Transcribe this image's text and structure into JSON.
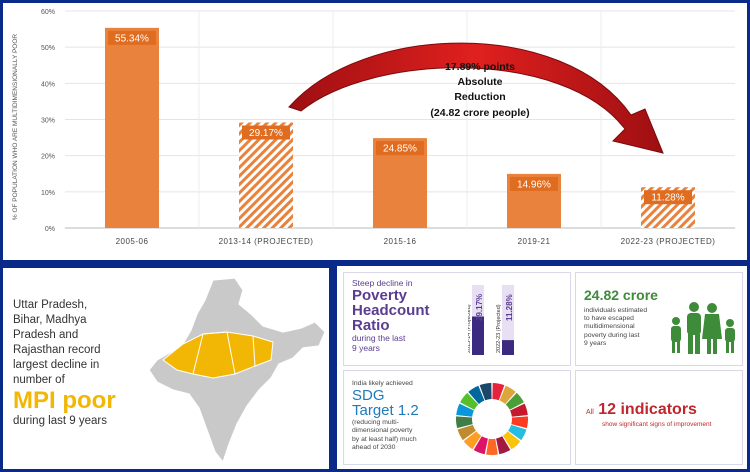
{
  "chart_data": {
    "type": "bar",
    "ylabel": "% OF POPULATION WHO ARE MULTIDIMENSIONALLY POOR",
    "ylim": [
      0,
      60
    ],
    "yticks": [
      "0%",
      "10%",
      "20%",
      "30%",
      "40%",
      "50%",
      "60%"
    ],
    "categories": [
      "2005-06",
      "2013-14 (PROJECTED)",
      "2015-16",
      "2019-21",
      "2022-23 (PROJECTED)"
    ],
    "values": [
      55.34,
      29.17,
      24.85,
      14.96,
      11.28
    ],
    "data_labels": [
      "55.34%",
      "29.17%",
      "24.85%",
      "14.96%",
      "11.28%"
    ],
    "projected": [
      false,
      true,
      false,
      false,
      true
    ],
    "bar_color": "#e8823c",
    "annotation": [
      "17.89% points",
      "Absolute",
      "Reduction",
      "(24.82 crore people)"
    ],
    "arrow_color": "#d7191c"
  },
  "map_panel": {
    "lines": [
      "Uttar Pradesh,",
      "Bihar, Madhya",
      "Pradesh  and",
      "Rajasthan record",
      "largest decline in",
      "number of"
    ],
    "big": "MPI poor",
    "tail": "during last 9 years",
    "map_icon": "india-map-icon",
    "highlight_color": "#f2b705"
  },
  "headcount_card": {
    "line1": "Steep decline in",
    "big": [
      "Poverty",
      "Headcount",
      "Ratio"
    ],
    "tail": [
      "during the last",
      "9 years"
    ],
    "bars": [
      {
        "period": "2013-14 (Projected)",
        "value": 29.17,
        "label": "29.17%"
      },
      {
        "period": "2022-23 (Projected)",
        "value": 11.28,
        "label": "11.28%"
      }
    ]
  },
  "crore_card": {
    "big": "24.82 crore",
    "text": [
      "individuals estimated",
      "to have escaped",
      "multidimensional",
      "poverty during last",
      "9 years"
    ],
    "icon": "family-icon"
  },
  "sdg_card": {
    "line1": "India likely achieved",
    "big": [
      "SDG",
      "Target 1.2"
    ],
    "text": [
      "(reducing multi-",
      "dimensional poverty",
      "by at least half) much",
      "ahead of 2030"
    ],
    "icon": "sdg-wheel-icon"
  },
  "indicators_card": {
    "prefix": "All",
    "big": "12 indicators",
    "text": "show significant signs of improvement"
  }
}
